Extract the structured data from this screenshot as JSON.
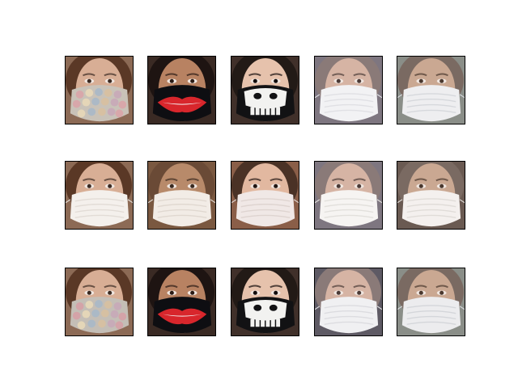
{
  "figure": {
    "rows": [
      {
        "cells": [
          {
            "hair": "#5a3826",
            "bg": "#8c6a55",
            "skin": "#d8ae95",
            "mask_kind": "floral",
            "mask": "#c9c2b8",
            "pattern": "#d9a4a8",
            "eye": "#3a2a22"
          },
          {
            "hair": "#1e1412",
            "bg": "#3a2a24",
            "skin": "#b88262",
            "mask_kind": "lips",
            "mask": "#0e0e12",
            "pattern": "#d8262c",
            "eye": "#2a1a14"
          },
          {
            "hair": "#221a16",
            "bg": "#40302a",
            "skin": "#e6c2ac",
            "mask_kind": "skull",
            "mask": "#121214",
            "pattern": "#f2f2f0",
            "eye": "#120c0c"
          },
          {
            "hair": "#8a7a78",
            "bg": "#7e7680",
            "skin": "#d6b4a4",
            "mask_kind": "plain",
            "mask": "#f2f2f4",
            "pattern": "#e0e0e4",
            "eye": "#4a3a36"
          },
          {
            "hair": "#7a6a62",
            "bg": "#8a8e88",
            "skin": "#caa892",
            "mask_kind": "plain",
            "mask": "#eeeef0",
            "pattern": "#d6d8dc",
            "eye": "#4a382e"
          }
        ]
      },
      {
        "cells": [
          {
            "hair": "#5a3826",
            "bg": "#8c6a55",
            "skin": "#d8ae95",
            "mask_kind": "plain",
            "mask": "#f4f0ec",
            "pattern": "#e2dcd6",
            "eye": "#3a2a22"
          },
          {
            "hair": "#6a4a36",
            "bg": "#7a5840",
            "skin": "#b88a6a",
            "mask_kind": "plain",
            "mask": "#f2ece6",
            "pattern": "#e0d8d0",
            "eye": "#3a2a20"
          },
          {
            "hair": "#4a3226",
            "bg": "#8a5e48",
            "skin": "#e2b8a0",
            "mask_kind": "plain",
            "mask": "#f0e8e6",
            "pattern": "#ded4d0",
            "eye": "#221612"
          },
          {
            "hair": "#8a7a78",
            "bg": "#7e7680",
            "skin": "#d6b4a4",
            "mask_kind": "plain",
            "mask": "#f6f4f2",
            "pattern": "#e2e0dc",
            "eye": "#4a3a36"
          },
          {
            "hair": "#7a6a62",
            "bg": "#6a5a52",
            "skin": "#caa892",
            "mask_kind": "plain",
            "mask": "#f4f0ee",
            "pattern": "#e0dcd8",
            "eye": "#4a382e"
          }
        ]
      },
      {
        "cells": [
          {
            "hair": "#5a3826",
            "bg": "#8c6a55",
            "skin": "#d8ae95",
            "mask_kind": "floral",
            "mask": "#c4beb6",
            "pattern": "#d6a0a6",
            "eye": "#3a2a22"
          },
          {
            "hair": "#1e1412",
            "bg": "#3a2a24",
            "skin": "#b88262",
            "mask_kind": "lips",
            "mask": "#0e0e12",
            "pattern": "#d8262c",
            "eye": "#2a1a14"
          },
          {
            "hair": "#221a16",
            "bg": "#40302a",
            "skin": "#e6c2ac",
            "mask_kind": "skull",
            "mask": "#121214",
            "pattern": "#f2f2f0",
            "eye": "#120c0c"
          },
          {
            "hair": "#8a7a78",
            "bg": "#5e5a64",
            "skin": "#d6b4a4",
            "mask_kind": "plain",
            "mask": "#f0f0f2",
            "pattern": "#dcdce0",
            "eye": "#4a3a36"
          },
          {
            "hair": "#7a6a62",
            "bg": "#8a8e88",
            "skin": "#caa892",
            "mask_kind": "plain",
            "mask": "#ececee",
            "pattern": "#d4d6da",
            "eye": "#4a382e"
          }
        ]
      }
    ]
  }
}
